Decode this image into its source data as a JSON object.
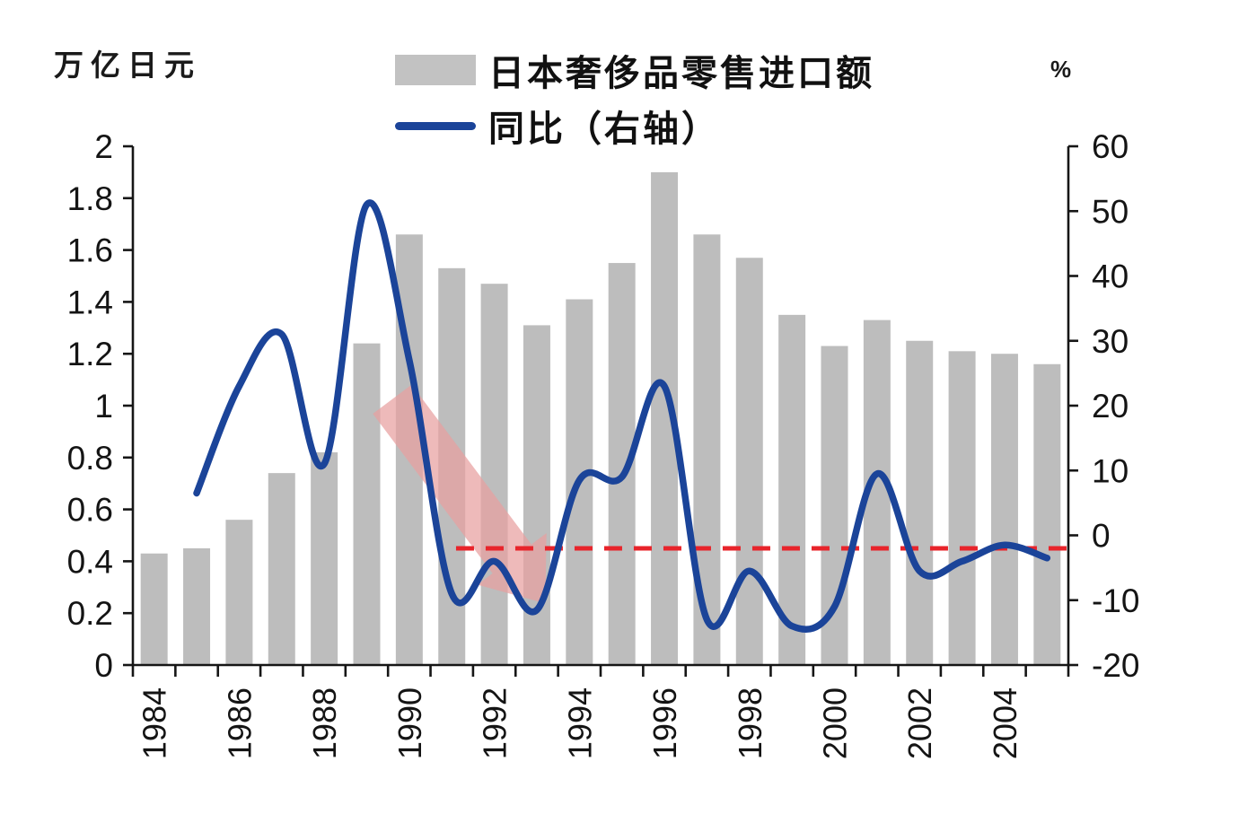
{
  "axis_titles": {
    "left": "万亿日元",
    "right": "%"
  },
  "legend": [
    {
      "label": "日本奢侈品零售进口额",
      "type": "bar",
      "color": "#c2c2c2"
    },
    {
      "label": "同比（右轴）",
      "type": "line",
      "color": "#1b4499"
    }
  ],
  "chart_data": {
    "type": "combo-bar-line",
    "categories": [
      1984,
      1985,
      1986,
      1987,
      1988,
      1989,
      1990,
      1991,
      1992,
      1993,
      1994,
      1995,
      1996,
      1997,
      1998,
      1999,
      2000,
      2001,
      2002,
      2003,
      2004,
      2005
    ],
    "series": [
      {
        "name": "日本奢侈品零售进口额",
        "type": "bar",
        "axis": "left",
        "color": "#bdbdbd",
        "values": [
          0.43,
          0.45,
          0.56,
          0.74,
          0.82,
          1.24,
          1.66,
          1.53,
          1.47,
          1.31,
          1.41,
          1.55,
          1.9,
          1.66,
          1.57,
          1.35,
          1.23,
          1.33,
          1.25,
          1.21,
          1.2,
          1.16
        ]
      },
      {
        "name": "同比（右轴）",
        "type": "line",
        "axis": "right",
        "color": "#1b4499",
        "values": [
          null,
          6.5,
          23,
          31,
          11,
          51,
          27,
          -9,
          -4,
          -11.5,
          8.5,
          9,
          23,
          -13,
          -5.5,
          -14,
          -11,
          9.5,
          -5.5,
          -4,
          -1.5,
          -3.5
        ]
      }
    ],
    "left_axis": {
      "title": "万亿日元",
      "min": 0,
      "max": 2,
      "step": 0.2,
      "ticks": [
        "2",
        "1.8",
        "1.6",
        "1.4",
        "1.2",
        "1",
        "0.8",
        "0.6",
        "0.4",
        "0.2",
        "0"
      ]
    },
    "right_axis": {
      "title": "%",
      "min": -20,
      "max": 60,
      "step": 10,
      "ticks": [
        "60",
        "50",
        "40",
        "30",
        "20",
        "10",
        "0",
        "-10",
        "-20"
      ]
    },
    "x_axis": {
      "tick_labels": [
        "1984",
        "1986",
        "1988",
        "1990",
        "1992",
        "1994",
        "1996",
        "1998",
        "2000",
        "2002",
        "2004"
      ],
      "label_every": 2
    },
    "reference_line": {
      "axis": "right",
      "value": -2,
      "start_year": 1991.1,
      "color": "#e8242b",
      "style": "dashed"
    },
    "annotation_arrow": {
      "from_year": 1989.6,
      "from_value": 21,
      "to_year": 1993.2,
      "to_value": -10.5,
      "color": "#e79f9f",
      "opacity": 0.72
    },
    "grid": false,
    "legend_position": "top-center"
  }
}
